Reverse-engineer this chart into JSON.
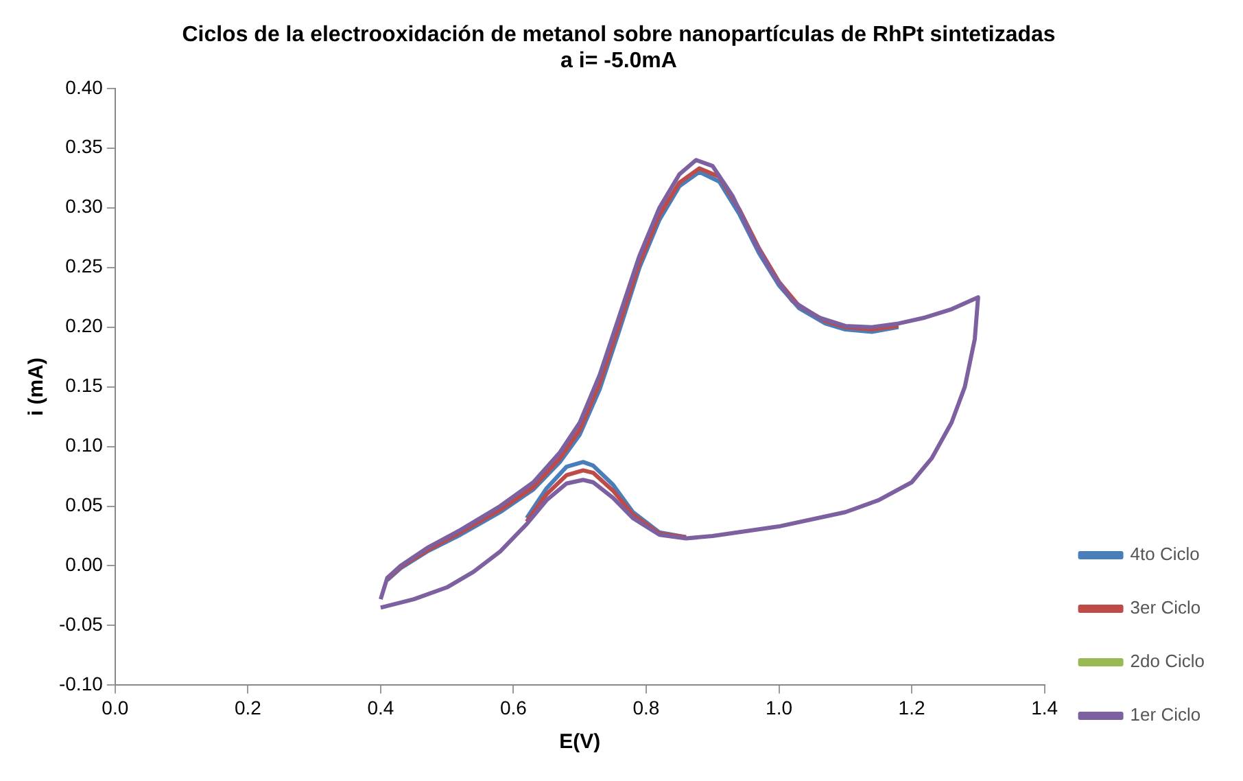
{
  "chart_data": {
    "type": "line",
    "title": "Ciclos de la electrooxidación de metanol sobre nanopartículas de RhPt sintetizadas a i= -5.0mA",
    "xlabel": "E(V)",
    "ylabel": "i (mA)",
    "xlim": [
      0,
      1.4
    ],
    "xticks": [
      {
        "value": 0,
        "label": "0.0"
      },
      {
        "value": 0.2,
        "label": "0.2"
      },
      {
        "value": 0.4,
        "label": "0.4"
      },
      {
        "value": 0.6,
        "label": "0.6"
      },
      {
        "value": 0.8,
        "label": "0.8"
      },
      {
        "value": 1,
        "label": "1.0"
      },
      {
        "value": 1.2,
        "label": "1.2"
      },
      {
        "value": 1.4,
        "label": "1.4"
      }
    ],
    "ylim": [
      -0.1,
      0.4
    ],
    "yticks": [
      {
        "value": -0.1,
        "label": "-0.10"
      },
      {
        "value": -0.05,
        "label": "-0.05"
      },
      {
        "value": 0,
        "label": "0.00"
      },
      {
        "value": 0.05,
        "label": "0.05"
      },
      {
        "value": 0.1,
        "label": "0.10"
      },
      {
        "value": 0.15,
        "label": "0.15"
      },
      {
        "value": 0.2,
        "label": "0.20"
      },
      {
        "value": 0.25,
        "label": "0.25"
      },
      {
        "value": 0.3,
        "label": "0.30"
      },
      {
        "value": 0.35,
        "label": "0.35"
      },
      {
        "value": 0.4,
        "label": "0.40"
      }
    ],
    "legend": "bottom right",
    "grid": false,
    "marker": "none",
    "line_style": "solid",
    "series": [
      {
        "name": "4to Ciclo",
        "color": "#4a7ebb",
        "x": [
          0.41,
          0.43,
          0.47,
          0.52,
          0.58,
          0.63,
          0.67,
          0.7,
          0.73,
          0.76,
          0.79,
          0.82,
          0.85,
          0.88,
          0.91,
          0.94,
          0.97,
          1.0,
          1.03,
          1.07,
          1.1,
          1.14,
          1.18
        ],
        "values": [
          -0.012,
          -0.002,
          0.012,
          0.026,
          0.045,
          0.064,
          0.087,
          0.11,
          0.148,
          0.198,
          0.25,
          0.29,
          0.318,
          0.33,
          0.322,
          0.295,
          0.262,
          0.235,
          0.216,
          0.203,
          0.198,
          0.196,
          0.2
        ]
      },
      {
        "color": "#4a7ebb",
        "x": [
          0.86,
          0.82,
          0.78,
          0.75,
          0.72,
          0.705,
          0.68,
          0.65,
          0.62
        ],
        "values": [
          0.024,
          0.028,
          0.045,
          0.068,
          0.084,
          0.087,
          0.083,
          0.065,
          0.04
        ]
      },
      {
        "name": "3er Ciclo",
        "color": "#be4b48",
        "x": [
          0.41,
          0.43,
          0.47,
          0.52,
          0.58,
          0.63,
          0.67,
          0.7,
          0.73,
          0.76,
          0.79,
          0.82,
          0.85,
          0.88,
          0.91,
          0.94,
          0.97,
          1.0,
          1.03,
          1.07,
          1.1,
          1.14,
          1.18
        ],
        "values": [
          -0.011,
          -0.001,
          0.013,
          0.028,
          0.047,
          0.066,
          0.09,
          0.114,
          0.153,
          0.203,
          0.254,
          0.294,
          0.321,
          0.333,
          0.326,
          0.299,
          0.266,
          0.238,
          0.218,
          0.205,
          0.2,
          0.198,
          0.201
        ]
      },
      {
        "color": "#be4b48",
        "x": [
          0.86,
          0.82,
          0.78,
          0.75,
          0.72,
          0.705,
          0.68,
          0.65,
          0.62
        ],
        "values": [
          0.024,
          0.027,
          0.043,
          0.063,
          0.078,
          0.08,
          0.076,
          0.06,
          0.037
        ]
      },
      {
        "name": "2do Ciclo",
        "color": "#98b954"
      },
      {
        "name": "1er Ciclo",
        "color": "#7d60a0",
        "x": [
          0.4,
          0.41,
          0.43,
          0.47,
          0.52,
          0.58,
          0.63,
          0.67,
          0.7,
          0.73,
          0.76,
          0.79,
          0.82,
          0.85,
          0.875,
          0.9,
          0.93,
          0.96,
          0.99,
          1.02,
          1.06,
          1.1,
          1.14,
          1.18,
          1.22,
          1.26,
          1.3,
          1.295,
          1.28,
          1.26,
          1.23,
          1.2,
          1.15,
          1.1,
          1.0,
          0.9,
          0.86,
          0.82,
          0.78,
          0.75,
          0.72,
          0.705,
          0.68,
          0.65,
          0.62,
          0.58,
          0.54,
          0.5,
          0.45,
          0.4
        ],
        "values": [
          -0.028,
          -0.01,
          0.0,
          0.015,
          0.03,
          0.05,
          0.07,
          0.095,
          0.12,
          0.16,
          0.21,
          0.26,
          0.3,
          0.328,
          0.34,
          0.335,
          0.31,
          0.275,
          0.245,
          0.222,
          0.208,
          0.201,
          0.2,
          0.203,
          0.208,
          0.215,
          0.225,
          0.19,
          0.15,
          0.12,
          0.09,
          0.07,
          0.055,
          0.045,
          0.033,
          0.025,
          0.023,
          0.026,
          0.04,
          0.057,
          0.07,
          0.072,
          0.069,
          0.055,
          0.035,
          0.012,
          -0.005,
          -0.018,
          -0.028,
          -0.035
        ]
      }
    ]
  }
}
